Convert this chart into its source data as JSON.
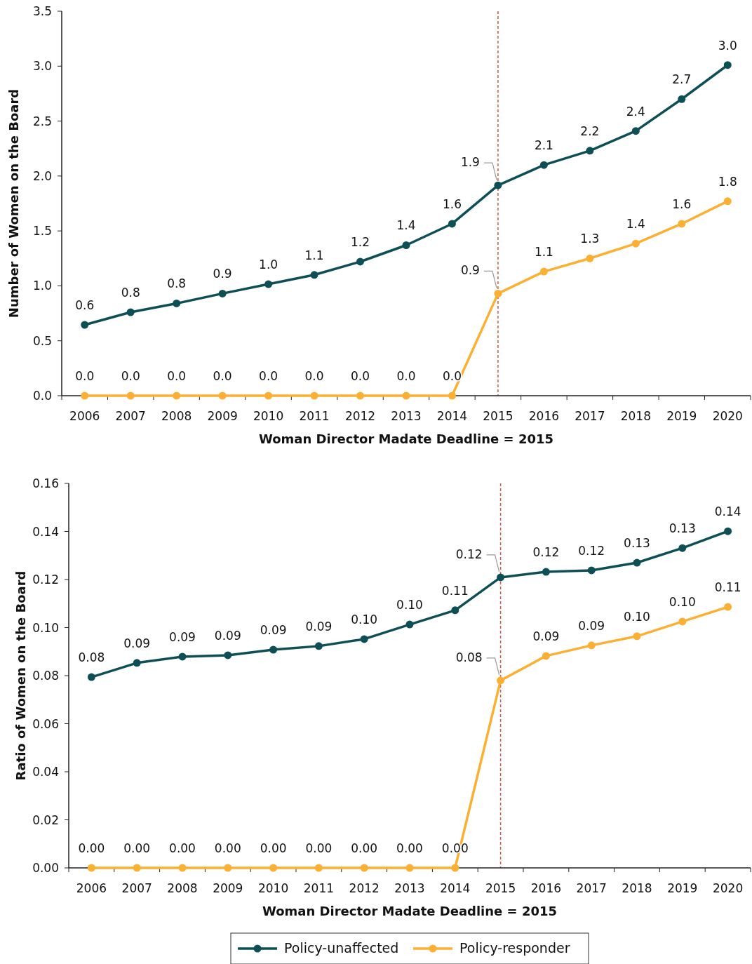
{
  "chart_data": [
    {
      "type": "line",
      "xlabel": "Woman Director Madate Deadline = 2015",
      "ylabel": "Number of Women on the Board",
      "categories": [
        "2006",
        "2007",
        "2008",
        "2009",
        "2010",
        "2011",
        "2012",
        "2013",
        "2014",
        "2015",
        "2016",
        "2017",
        "2018",
        "2019",
        "2020"
      ],
      "series": [
        {
          "color": "#0d4f55",
          "values": [
            0.645,
            0.76,
            0.84,
            0.93,
            1.015,
            1.1,
            1.22,
            1.37,
            1.565,
            1.915,
            2.1,
            2.23,
            2.41,
            2.7,
            3.01
          ],
          "value_labels": [
            "0.6",
            "0.8",
            "0.8",
            "0.9",
            "1.0",
            "1.1",
            "1.2",
            "1.4",
            "1.6",
            "1.9",
            "2.1",
            "2.2",
            "2.4",
            "2.7",
            "3.0"
          ]
        },
        {
          "color": "#fbb034",
          "values": [
            0,
            0,
            0,
            0,
            0,
            0,
            0,
            0,
            0,
            0.93,
            1.13,
            1.25,
            1.385,
            1.565,
            1.77
          ],
          "value_labels": [
            "0.0",
            "0.0",
            "0.0",
            "0.0",
            "0.0",
            "0.0",
            "0.0",
            "0.0",
            "0.0",
            "0.9",
            "1.1",
            "1.3",
            "1.4",
            "1.6",
            "1.8"
          ]
        }
      ],
      "ylim": [
        0,
        3.5
      ],
      "yticks": [
        {
          "value": 0,
          "label": "0.0"
        },
        {
          "value": 0.5,
          "label": "0.5"
        },
        {
          "value": 1,
          "label": "1.0"
        },
        {
          "value": 1.5,
          "label": "1.5"
        },
        {
          "value": 2,
          "label": "2.0"
        },
        {
          "value": 2.5,
          "label": "2.5"
        },
        {
          "value": 3,
          "label": "3.0"
        },
        {
          "value": 3.5,
          "label": "3.5"
        }
      ],
      "ref_lines": [
        {
          "axis": "x",
          "value": "2015",
          "color": "#d9534f",
          "line_style": "dashed"
        }
      ],
      "marker": "circle",
      "grid": false,
      "legend": false
    },
    {
      "type": "line",
      "xlabel": "Woman Director Madate Deadline = 2015",
      "ylabel": "Ratio of Women on the Board",
      "categories": [
        "2006",
        "2007",
        "2008",
        "2009",
        "2010",
        "2011",
        "2012",
        "2013",
        "2014",
        "2015",
        "2016",
        "2017",
        "2018",
        "2019",
        "2020"
      ],
      "series": [
        {
          "name": "Policy-unaffected",
          "color": "#0d4f55",
          "values": [
            0.0794,
            0.0853,
            0.0879,
            0.0885,
            0.0908,
            0.0923,
            0.0952,
            0.1013,
            0.1072,
            0.1209,
            0.1232,
            0.1238,
            0.127,
            0.1331,
            0.1401
          ],
          "value_labels": [
            "0.08",
            "0.09",
            "0.09",
            "0.09",
            "0.09",
            "0.09",
            "0.10",
            "0.10",
            "0.11",
            "0.12",
            "0.12",
            "0.12",
            "0.13",
            "0.13",
            "0.14"
          ]
        },
        {
          "name": "Policy-responder",
          "color": "#fbb034",
          "values": [
            0,
            0,
            0,
            0,
            0,
            0,
            0,
            0,
            0,
            0.078,
            0.0882,
            0.0926,
            0.0964,
            0.1025,
            0.1086
          ],
          "value_labels": [
            "0.00",
            "0.00",
            "0.00",
            "0.00",
            "0.00",
            "0.00",
            "0.00",
            "0.00",
            "0.00",
            "0.08",
            "0.09",
            "0.09",
            "0.10",
            "0.10",
            "0.11"
          ]
        }
      ],
      "ylim": [
        0,
        0.16
      ],
      "yticks": [
        {
          "value": 0,
          "label": "0.00"
        },
        {
          "value": 0.02,
          "label": "0.02"
        },
        {
          "value": 0.04,
          "label": "0.04"
        },
        {
          "value": 0.06,
          "label": "0.06"
        },
        {
          "value": 0.08,
          "label": "0.08"
        },
        {
          "value": 0.1,
          "label": "0.10"
        },
        {
          "value": 0.12,
          "label": "0.12"
        },
        {
          "value": 0.14,
          "label": "0.14"
        },
        {
          "value": 0.16,
          "label": "0.16"
        }
      ],
      "ref_lines": [
        {
          "axis": "x",
          "value": "2015",
          "color": "#d9534f",
          "line_style": "dashed"
        }
      ],
      "marker": "circle",
      "grid": false,
      "legend": "bottom"
    }
  ]
}
